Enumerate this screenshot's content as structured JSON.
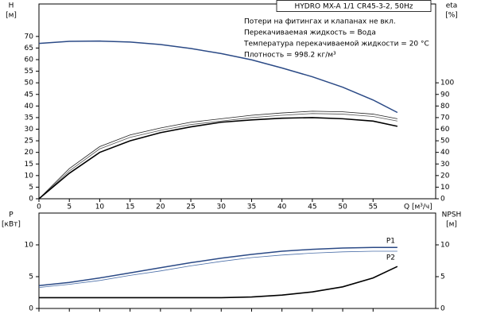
{
  "chart_data": [
    {
      "type": "line",
      "title": "HYDRO MX-A 1/1 CR45-3-2, 50Hz",
      "notes": [
        "Потери на фитингах и клапанах не вкл.",
        "Перекачиваемая жидкость = Вода",
        "Температура перекачиваемой жидкости = 20 °C",
        "Плотность = 998.2 кг/м³"
      ],
      "y_label": "H",
      "y_unit": "[м]",
      "y2_label": "eta",
      "y2_unit": "[%]",
      "x_label": "Q [м³/ч]",
      "x": [
        0,
        5,
        10,
        15,
        20,
        25,
        30,
        35,
        40,
        45,
        50,
        55,
        59
      ],
      "xlim": [
        0,
        65.3
      ],
      "xticks": [
        0,
        5,
        10,
        15,
        20,
        25,
        30,
        35,
        40,
        45,
        50,
        55
      ],
      "ylim": [
        0,
        84
      ],
      "yticks": [
        0,
        5,
        10,
        15,
        20,
        25,
        30,
        35,
        40,
        45,
        50,
        55,
        60,
        65,
        70
      ],
      "y2lim": [
        0,
        168
      ],
      "y2ticks": [
        0,
        10,
        20,
        30,
        40,
        50,
        60,
        70,
        80,
        90,
        100
      ],
      "series": [
        {
          "color": "#2b4a86",
          "width": 1.5,
          "values": [
            67,
            67.9,
            68,
            67.6,
            66.5,
            64.8,
            62.6,
            59.9,
            56.4,
            52.6,
            48.1,
            42.6,
            37.2
          ]
        },
        {
          "color": "#222222",
          "width": 0.8,
          "axis": "y2",
          "values": [
            0,
            26,
            45,
            55,
            61,
            66,
            69,
            72,
            74,
            75.5,
            75,
            73,
            69
          ]
        },
        {
          "color": "#555555",
          "width": 0.8,
          "axis": "y2",
          "values": [
            0,
            24,
            43,
            53,
            59,
            64,
            67,
            70,
            72,
            73.5,
            73,
            71,
            67
          ]
        },
        {
          "color": "#000000",
          "width": 1.6,
          "axis": "y2",
          "values": [
            0,
            22,
            40,
            50,
            57,
            62,
            66,
            68,
            69.5,
            70,
            69,
            67,
            62.5
          ]
        }
      ]
    },
    {
      "type": "line",
      "y_label": "P",
      "y_unit": "[кВт]",
      "y2_label": "NPSH",
      "y2_unit": "[м]",
      "x": [
        0,
        5,
        10,
        15,
        20,
        25,
        30,
        35,
        40,
        45,
        50,
        55,
        59
      ],
      "xlim": [
        0,
        65.3
      ],
      "xticks": [
        0,
        5,
        10,
        15,
        20,
        25,
        30,
        35,
        40,
        45,
        50,
        55
      ],
      "ylim": [
        0,
        15
      ],
      "yticks": [
        0,
        5,
        10
      ],
      "y2lim": [
        0,
        15
      ],
      "y2ticks": [
        0,
        5,
        10
      ],
      "series": [
        {
          "name": "P1",
          "color": "#2b4a86",
          "width": 1.5,
          "values": [
            3.6,
            4.1,
            4.8,
            5.6,
            6.4,
            7.2,
            7.9,
            8.5,
            9.0,
            9.3,
            9.5,
            9.6,
            9.6
          ]
        },
        {
          "name": "P2",
          "color": "#4a6ea8",
          "width": 0.8,
          "values": [
            3.3,
            3.8,
            4.4,
            5.2,
            5.9,
            6.7,
            7.4,
            8.0,
            8.4,
            8.7,
            8.9,
            9.0,
            9.0
          ]
        },
        {
          "color": "#000000",
          "width": 1.6,
          "axis": "y2",
          "values": [
            1.7,
            1.7,
            1.7,
            1.7,
            1.7,
            1.7,
            1.7,
            1.8,
            2.1,
            2.6,
            3.4,
            4.8,
            6.6
          ]
        }
      ]
    }
  ]
}
